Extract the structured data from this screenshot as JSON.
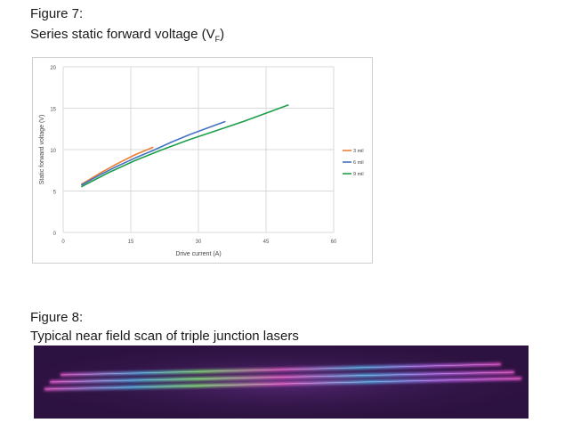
{
  "figure7": {
    "label": "Figure 7:",
    "title_prefix": "Series static forward voltage (V",
    "title_sub": "F",
    "title_suffix": ")"
  },
  "figure8": {
    "label": "Figure 8:",
    "title": "Typical near field scan of triple junction lasers"
  },
  "colors": {
    "series_3mil": "#ed7d31",
    "series_6mil": "#4472c4",
    "series_9mil": "#1e9e4a",
    "gridline": "#d9d9d9",
    "scan_background": "#2c1240"
  },
  "chart_data": {
    "type": "line",
    "title": "",
    "xlabel": "Drive current (A)",
    "ylabel": "Static forward voltage (V)",
    "xlim": [
      0,
      60
    ],
    "ylim": [
      0,
      20
    ],
    "xticks": [
      "0",
      "15",
      "30",
      "45",
      "60"
    ],
    "yticks": [
      "0",
      "5",
      "10",
      "15",
      "20"
    ],
    "grid": true,
    "legend_position": "right",
    "series": [
      {
        "name": "3 mil",
        "color": "#ed7d31",
        "x": [
          4,
          8,
          12,
          16,
          20
        ],
        "y": [
          5.8,
          7.1,
          8.3,
          9.4,
          10.3
        ]
      },
      {
        "name": "6 mil",
        "color": "#4472c4",
        "x": [
          4,
          8,
          12,
          16,
          20,
          24,
          28,
          32,
          36
        ],
        "y": [
          5.7,
          6.9,
          8.0,
          9.0,
          9.9,
          10.9,
          11.8,
          12.6,
          13.4
        ]
      },
      {
        "name": "9 mil",
        "color": "#1e9e4a",
        "x": [
          4,
          10,
          16,
          22,
          28,
          34,
          40,
          46,
          50
        ],
        "y": [
          5.5,
          7.2,
          8.7,
          10.0,
          11.2,
          12.3,
          13.4,
          14.6,
          15.4
        ]
      }
    ]
  },
  "near_field_scan": {
    "stripe_colors": [
      "#ff4fd8",
      "#4cc3ff",
      "#7dff6a",
      "#ff5ad1",
      "#b46bff"
    ]
  }
}
